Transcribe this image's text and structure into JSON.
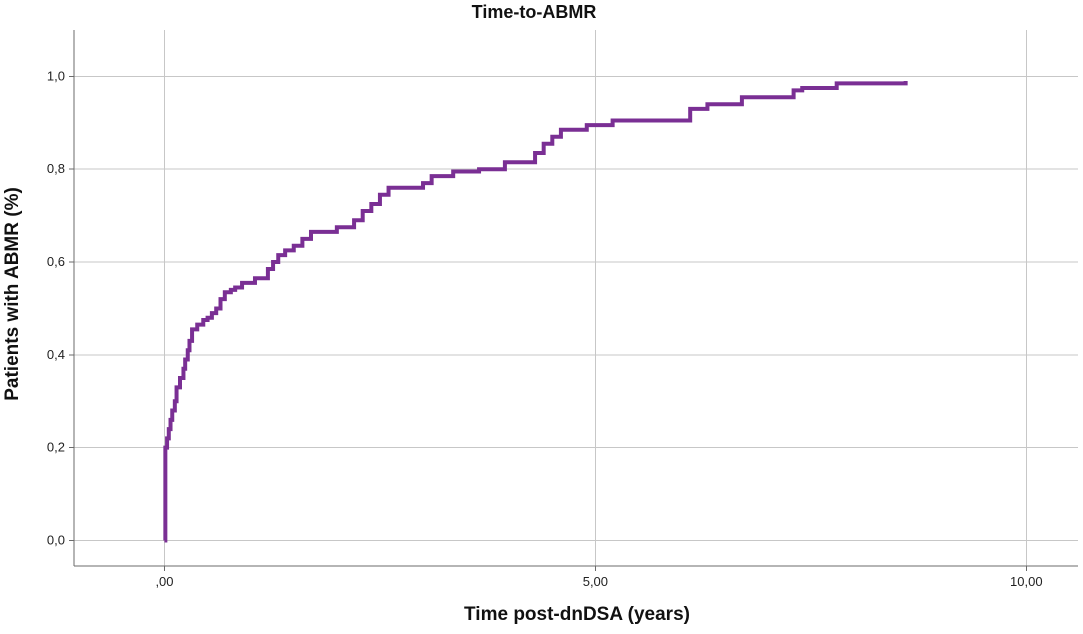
{
  "chart_data": {
    "type": "line",
    "title": "Time-to-ABMR",
    "xlabel": "Time post-dnDSA (years)",
    "ylabel": "Patients with ABMR (%)",
    "xlim": [
      -1.05,
      10.6
    ],
    "ylim": [
      -0.055,
      1.1
    ],
    "grid": true,
    "legend": "none",
    "x_ticks": [
      0,
      5,
      10
    ],
    "x_tick_labels": [
      ",00",
      "5,00",
      "10,00"
    ],
    "y_ticks": [
      0,
      0.2,
      0.4,
      0.6,
      0.8,
      1.0
    ],
    "y_tick_labels": [
      "0,0",
      "0,2",
      "0,4",
      "0,6",
      "0,8",
      "1,0"
    ],
    "series": [
      {
        "step": true,
        "color": "#7a2f94",
        "x": [
          0,
          0.01,
          0.03,
          0.05,
          0.07,
          0.09,
          0.12,
          0.14,
          0.18,
          0.22,
          0.24,
          0.27,
          0.29,
          0.32,
          0.38,
          0.45,
          0.5,
          0.55,
          0.6,
          0.65,
          0.7,
          0.77,
          0.82,
          0.9,
          1.05,
          1.2,
          1.26,
          1.32,
          1.4,
          1.5,
          1.6,
          1.7,
          2.0,
          2.2,
          2.3,
          2.4,
          2.5,
          2.6,
          3.0,
          3.1,
          3.35,
          3.65,
          3.95,
          4.3,
          4.4,
          4.5,
          4.6,
          4.9,
          5.2,
          6.1,
          6.3,
          6.7,
          7.3,
          7.4,
          7.8,
          8.6
        ],
        "y": [
          0,
          0.2,
          0.22,
          0.24,
          0.26,
          0.28,
          0.3,
          0.33,
          0.35,
          0.37,
          0.39,
          0.41,
          0.43,
          0.455,
          0.465,
          0.475,
          0.48,
          0.49,
          0.5,
          0.52,
          0.535,
          0.54,
          0.545,
          0.555,
          0.565,
          0.585,
          0.6,
          0.615,
          0.625,
          0.635,
          0.65,
          0.665,
          0.675,
          0.69,
          0.71,
          0.725,
          0.745,
          0.76,
          0.77,
          0.785,
          0.795,
          0.8,
          0.815,
          0.835,
          0.855,
          0.87,
          0.885,
          0.895,
          0.905,
          0.93,
          0.94,
          0.955,
          0.97,
          0.975,
          0.985,
          0.99
        ]
      }
    ]
  }
}
